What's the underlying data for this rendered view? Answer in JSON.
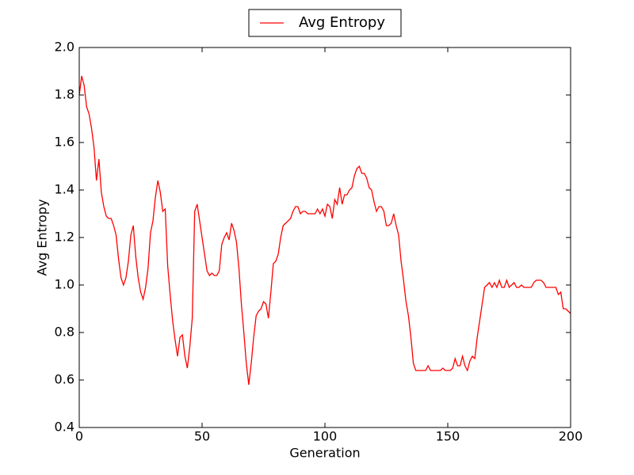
{
  "chart_data": {
    "type": "line",
    "xlabel": "Generation",
    "ylabel": "Avg Entropy",
    "legend": "top-center",
    "x": [
      0,
      1,
      2,
      3,
      4,
      5,
      6,
      7,
      8,
      9,
      10,
      11,
      12,
      13,
      14,
      15,
      16,
      17,
      18,
      19,
      20,
      21,
      22,
      23,
      24,
      25,
      26,
      27,
      28,
      29,
      30,
      31,
      32,
      33,
      34,
      35,
      36,
      37,
      38,
      39,
      40,
      41,
      42,
      43,
      44,
      45,
      46,
      47,
      48,
      49,
      50,
      51,
      52,
      53,
      54,
      55,
      56,
      57,
      58,
      59,
      60,
      61,
      62,
      63,
      64,
      65,
      66,
      67,
      68,
      69,
      70,
      71,
      72,
      73,
      74,
      75,
      76,
      77,
      78,
      79,
      80,
      81,
      82,
      83,
      84,
      85,
      86,
      87,
      88,
      89,
      90,
      91,
      92,
      93,
      94,
      95,
      96,
      97,
      98,
      99,
      100,
      101,
      102,
      103,
      104,
      105,
      106,
      107,
      108,
      109,
      110,
      111,
      112,
      113,
      114,
      115,
      116,
      117,
      118,
      119,
      120,
      121,
      122,
      123,
      124,
      125,
      126,
      127,
      128,
      129,
      130,
      131,
      132,
      133,
      134,
      135,
      136,
      137,
      138,
      139,
      140,
      141,
      142,
      143,
      144,
      145,
      146,
      147,
      148,
      149,
      150,
      151,
      152,
      153,
      154,
      155,
      156,
      157,
      158,
      159,
      160,
      161,
      162,
      163,
      164,
      165,
      166,
      167,
      168,
      169,
      170,
      171,
      172,
      173,
      174,
      175,
      176,
      177,
      178,
      179,
      180,
      181,
      182,
      183,
      184,
      185,
      186,
      187,
      188,
      189,
      190,
      191,
      192,
      193,
      194,
      195,
      196,
      197,
      198,
      199,
      200
    ],
    "series": [
      {
        "name": "Avg Entropy",
        "color": "#ff0000",
        "values": [
          1.8,
          1.88,
          1.84,
          1.75,
          1.72,
          1.66,
          1.58,
          1.44,
          1.53,
          1.39,
          1.33,
          1.29,
          1.28,
          1.28,
          1.25,
          1.21,
          1.11,
          1.03,
          1.0,
          1.03,
          1.1,
          1.21,
          1.25,
          1.12,
          1.03,
          0.97,
          0.94,
          0.99,
          1.07,
          1.22,
          1.27,
          1.37,
          1.44,
          1.39,
          1.31,
          1.32,
          1.08,
          0.96,
          0.85,
          0.77,
          0.7,
          0.78,
          0.79,
          0.7,
          0.65,
          0.74,
          0.86,
          1.31,
          1.34,
          1.27,
          1.2,
          1.13,
          1.06,
          1.04,
          1.05,
          1.04,
          1.04,
          1.06,
          1.17,
          1.2,
          1.22,
          1.19,
          1.26,
          1.23,
          1.18,
          1.07,
          0.92,
          0.8,
          0.67,
          0.58,
          0.67,
          0.78,
          0.87,
          0.89,
          0.9,
          0.93,
          0.92,
          0.86,
          0.97,
          1.09,
          1.1,
          1.13,
          1.2,
          1.25,
          1.26,
          1.27,
          1.28,
          1.31,
          1.33,
          1.33,
          1.3,
          1.31,
          1.31,
          1.3,
          1.3,
          1.3,
          1.3,
          1.32,
          1.3,
          1.32,
          1.29,
          1.34,
          1.33,
          1.28,
          1.36,
          1.34,
          1.41,
          1.34,
          1.38,
          1.38,
          1.4,
          1.41,
          1.46,
          1.49,
          1.5,
          1.47,
          1.47,
          1.45,
          1.41,
          1.4,
          1.35,
          1.31,
          1.33,
          1.33,
          1.31,
          1.25,
          1.25,
          1.26,
          1.3,
          1.25,
          1.21,
          1.1,
          1.02,
          0.93,
          0.87,
          0.78,
          0.67,
          0.64,
          0.64,
          0.64,
          0.64,
          0.64,
          0.66,
          0.64,
          0.64,
          0.64,
          0.64,
          0.64,
          0.65,
          0.64,
          0.64,
          0.64,
          0.65,
          0.69,
          0.66,
          0.66,
          0.7,
          0.66,
          0.64,
          0.68,
          0.7,
          0.69,
          0.78,
          0.85,
          0.92,
          0.99,
          1.0,
          1.01,
          0.99,
          1.01,
          0.99,
          1.02,
          0.99,
          0.99,
          1.02,
          0.99,
          1.0,
          1.01,
          0.99,
          0.99,
          1.0,
          0.99,
          0.99,
          0.99,
          0.99,
          1.01,
          1.02,
          1.02,
          1.02,
          1.01,
          0.99,
          0.99,
          0.99,
          0.99,
          0.99,
          0.96,
          0.97,
          0.9,
          0.9,
          0.89,
          0.88
        ]
      }
    ],
    "xlim": [
      0,
      200
    ],
    "xticks": [
      0,
      50,
      100,
      150,
      200
    ],
    "ylim": [
      0.4,
      2.0
    ],
    "yticks": [
      0.4,
      0.6,
      0.8,
      {
        "value": 1.0,
        "label": "1.0"
      },
      1.2,
      1.4,
      1.6,
      1.8,
      {
        "value": 2.0,
        "label": "2.0"
      }
    ]
  }
}
